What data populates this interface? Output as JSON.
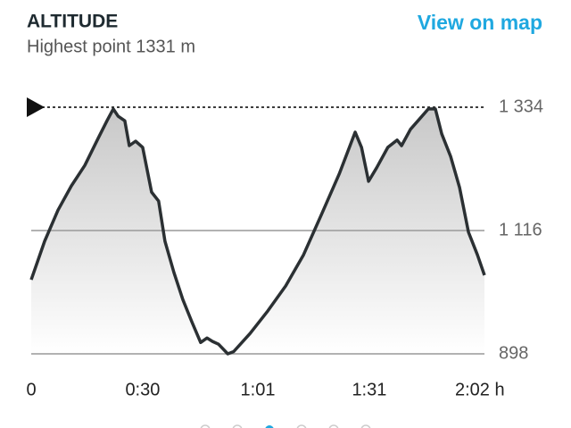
{
  "chart_data": {
    "type": "area-line",
    "title": "ALTITUDE",
    "subtitle": "Highest point 1331 m",
    "link": "View on map",
    "x": [
      0,
      3.6,
      7.2,
      10.8,
      14.4,
      18,
      20.4,
      22.1,
      23.4,
      25.2,
      26.4,
      28.1,
      30,
      32.4,
      34.3,
      36,
      38.4,
      40.8,
      43.2,
      45.6,
      47.3,
      48.8,
      50.4,
      52.9,
      54.5,
      58.9,
      63.7,
      68.5,
      73.3,
      78.1,
      82.9,
      87.2,
      88.9,
      90.8,
      93,
      96,
      98.5,
      99.7,
      102.1,
      104.5,
      106.9,
      108.8,
      110.5,
      112.9,
      115.3,
      117.7,
      120.1,
      122
    ],
    "values": [
      1029,
      1097,
      1152,
      1195,
      1231,
      1279,
      1310,
      1331,
      1318,
      1310,
      1266,
      1274,
      1263,
      1184,
      1168,
      1097,
      1042,
      994,
      955,
      918,
      926,
      920,
      915,
      898,
      902,
      934,
      974,
      1018,
      1073,
      1144,
      1216,
      1290,
      1263,
      1203,
      1227,
      1263,
      1276,
      1266,
      1295,
      1313,
      1331,
      1331,
      1287,
      1247,
      1192,
      1113,
      1073,
      1037
    ],
    "color": "#2b3033",
    "xlim": [
      0,
      122
    ],
    "xticks": [
      0,
      {
        "value": 30,
        "label": "0:30"
      },
      {
        "value": 61,
        "label": "1:01"
      },
      {
        "value": 91,
        "label": "1:31"
      },
      {
        "value": 122,
        "label": "2:02 h"
      }
    ],
    "ylim": [
      898,
      1334
    ],
    "yticks": [
      898,
      {
        "value": 1116,
        "label": "1 116"
      },
      {
        "value": 1334,
        "label": "1 334"
      }
    ],
    "grid": true
  }
}
